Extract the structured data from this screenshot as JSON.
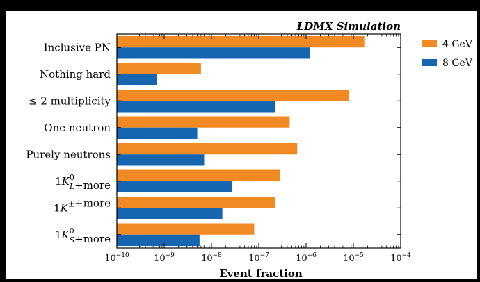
{
  "chart_data": {
    "type": "bar",
    "orientation": "horizontal",
    "annotation": "LDMX Simulation",
    "xlabel": "Event fraction",
    "xscale": "log",
    "xlim": [
      1e-10,
      0.0001
    ],
    "xticks": [
      {
        "base": "10",
        "exp": "−10"
      },
      {
        "base": "10",
        "exp": "−9"
      },
      {
        "base": "10",
        "exp": "−8"
      },
      {
        "base": "10",
        "exp": "−7"
      },
      {
        "base": "10",
        "exp": "−6"
      },
      {
        "base": "10",
        "exp": "−5"
      },
      {
        "base": "10",
        "exp": "−4"
      }
    ],
    "categories": [
      {
        "parts": [
          {
            "t": "Inclusive PN"
          }
        ]
      },
      {
        "parts": [
          {
            "t": "Nothing hard"
          }
        ]
      },
      {
        "parts": [
          {
            "t": "≤ 2 multiplicity"
          }
        ]
      },
      {
        "parts": [
          {
            "t": "One neutron"
          }
        ]
      },
      {
        "parts": [
          {
            "t": "Purely neutrons"
          }
        ]
      },
      {
        "parts": [
          {
            "t": "1"
          },
          {
            "t": "K",
            "it": true
          },
          {
            "t": "0",
            "sup": true,
            "sub": "L",
            "subit": true
          },
          {
            "t": "+more"
          }
        ]
      },
      {
        "parts": [
          {
            "t": "1"
          },
          {
            "t": "K",
            "it": true
          },
          {
            "t": "±",
            "sup": true
          },
          {
            "t": "+more"
          }
        ]
      },
      {
        "parts": [
          {
            "t": "1"
          },
          {
            "t": "K",
            "it": true
          },
          {
            "t": "0",
            "sup": true,
            "sub": "S",
            "subit": true
          },
          {
            "t": "+more"
          }
        ]
      }
    ],
    "series": [
      {
        "name": "4 GeV",
        "color": "#f28a24",
        "values": [
          1.7e-05,
          6e-09,
          8e-06,
          4.5e-07,
          6.5e-07,
          2.8e-07,
          2.2e-07,
          8e-08
        ]
      },
      {
        "name": "8 GeV",
        "color": "#1565b0",
        "values": [
          1.2e-06,
          7e-10,
          2.2e-07,
          5e-09,
          7e-09,
          2.7e-08,
          1.7e-08,
          5.6e-09
        ]
      }
    ],
    "legend_position": "outside-right",
    "grid": false
  }
}
